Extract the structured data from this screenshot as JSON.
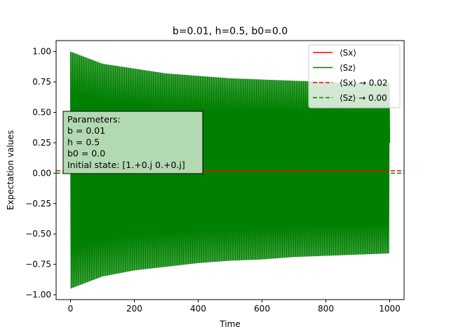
{
  "chart_data": {
    "type": "line",
    "title": "b=0.01, h=0.5, b0=0.0",
    "xlabel": "Time",
    "ylabel": "Expectation values",
    "xlim": [
      -45,
      1045
    ],
    "ylim": [
      -1.04,
      1.09
    ],
    "xticks": [
      0,
      200,
      400,
      600,
      800,
      1000
    ],
    "xtick_labels": [
      "0",
      "200",
      "400",
      "600",
      "800",
      "1000"
    ],
    "yticks": [
      -1.0,
      -0.75,
      -0.5,
      -0.25,
      0.0,
      0.25,
      0.5,
      0.75,
      1.0
    ],
    "ytick_labels": [
      "−1.00",
      "−0.75",
      "−0.50",
      "−0.25",
      "0.00",
      "0.25",
      "0.50",
      "0.75",
      "1.00"
    ],
    "grid": false,
    "legend_position": "top-right",
    "series": [
      {
        "name": "⟨Sx⟩",
        "color": "#ff0000",
        "style": "solid",
        "x": [
          0,
          1000
        ],
        "y": [
          0.02,
          0.02
        ]
      },
      {
        "name": "⟨Sz⟩",
        "color": "#008000",
        "style": "solid",
        "rendering": "fast oscillation between a decaying upper envelope and a rising lower envelope",
        "envelope_x": [
          0,
          100,
          200,
          300,
          400,
          500,
          600,
          700,
          800,
          900,
          1000
        ],
        "upper_envelope": [
          1.0,
          0.9,
          0.86,
          0.82,
          0.8,
          0.78,
          0.77,
          0.76,
          0.75,
          0.74,
          0.74
        ],
        "lower_envelope": [
          -0.95,
          -0.85,
          -0.8,
          -0.77,
          -0.74,
          -0.72,
          -0.71,
          -0.69,
          -0.68,
          -0.67,
          -0.66
        ],
        "end_value": 0.25
      },
      {
        "name": "⟨Sx⟩ → 0.02",
        "color": "#ff0000",
        "style": "dashed",
        "y_constant": 0.02
      },
      {
        "name": "⟨Sz⟩ → 0.00",
        "color": "#008000",
        "style": "dashed",
        "y_constant": 0.0
      }
    ],
    "annotation": {
      "lines": [
        "Parameters:",
        "b = 0.01",
        "h = 0.5",
        "b0 = 0.0",
        "Initial state: [1.+0.j 0.+0.j]"
      ],
      "background": "#b3d9b3",
      "position": "left-middle"
    }
  }
}
